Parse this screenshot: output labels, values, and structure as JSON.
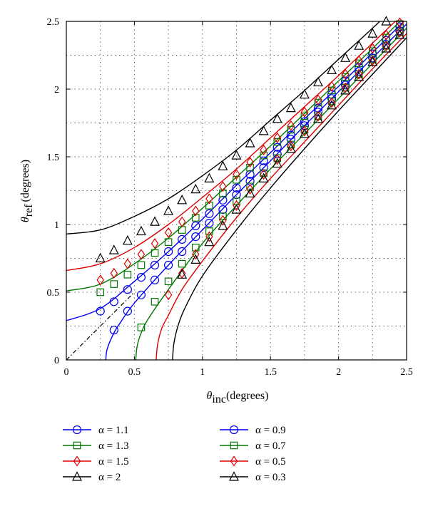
{
  "chart_data": {
    "type": "line",
    "xlabel": {
      "symbol": "θ",
      "subscript": "inc",
      "unit": "(degrees)"
    },
    "ylabel": {
      "symbol": "θ",
      "subscript": "ref",
      "unit": "(degrees)"
    },
    "xlim": [
      0,
      2.5
    ],
    "ylim": [
      0,
      2.5
    ],
    "xticks": [
      "0",
      "0.5",
      "1",
      "1.5",
      "2",
      "2.5"
    ],
    "yticks": [
      "0",
      "0.5",
      "1",
      "1.5",
      "2",
      "2.5"
    ],
    "grid": true,
    "reference_line": {
      "style": "dash-dot",
      "from": [
        0,
        0
      ],
      "to": [
        0.5,
        0.5
      ]
    },
    "legend_position": "bottom-two-columns",
    "series": [
      {
        "name": "α = 1.1",
        "color": "#0000ee",
        "marker": "circle",
        "column": 0,
        "x": [
          0.25,
          0.35,
          0.45,
          0.55,
          0.65,
          0.75,
          0.85,
          0.95,
          1.05,
          1.15,
          1.25,
          1.35,
          1.45,
          1.55,
          1.65,
          1.75,
          1.85,
          1.95,
          2.05,
          2.15,
          2.25,
          2.35,
          2.45
        ],
        "y": [
          0.36,
          0.43,
          0.52,
          0.61,
          0.7,
          0.8,
          0.89,
          0.99,
          1.08,
          1.18,
          1.27,
          1.37,
          1.47,
          1.57,
          1.66,
          1.76,
          1.86,
          1.96,
          2.06,
          2.16,
          2.26,
          2.36,
          2.46
        ]
      },
      {
        "name": "α = 1.3",
        "color": "#007700",
        "marker": "square",
        "column": 0,
        "x": [
          0.25,
          0.35,
          0.45,
          0.55,
          0.65,
          0.75,
          0.85,
          0.95,
          1.05,
          1.15,
          1.25,
          1.35,
          1.45,
          1.55,
          1.65,
          1.75,
          1.85,
          1.95,
          2.05,
          2.15,
          2.25,
          2.35,
          2.45
        ],
        "y": [
          0.5,
          0.56,
          0.63,
          0.7,
          0.79,
          0.87,
          0.96,
          1.05,
          1.14,
          1.23,
          1.33,
          1.42,
          1.51,
          1.61,
          1.7,
          1.8,
          1.9,
          1.99,
          2.09,
          2.19,
          2.28,
          2.38,
          2.48
        ]
      },
      {
        "name": "α = 1.5",
        "color": "#dd0000",
        "marker": "diamond",
        "column": 0,
        "x": [
          0.25,
          0.35,
          0.45,
          0.55,
          0.65,
          0.75,
          0.85,
          0.95,
          1.05,
          1.15,
          1.25,
          1.35,
          1.45,
          1.55,
          1.65,
          1.75,
          1.85,
          1.95,
          2.05,
          2.15,
          2.25,
          2.35,
          2.45
        ],
        "y": [
          0.59,
          0.64,
          0.71,
          0.78,
          0.86,
          0.94,
          1.02,
          1.1,
          1.19,
          1.28,
          1.37,
          1.46,
          1.55,
          1.64,
          1.73,
          1.83,
          1.92,
          2.02,
          2.11,
          2.21,
          2.3,
          2.4,
          2.49
        ]
      },
      {
        "name": "α = 2",
        "color": "#000000",
        "marker": "triangle",
        "column": 0,
        "x": [
          0.25,
          0.35,
          0.45,
          0.55,
          0.65,
          0.75,
          0.85,
          0.95,
          1.05,
          1.15,
          1.25,
          1.35,
          1.45,
          1.55,
          1.65,
          1.75,
          1.85,
          1.95,
          2.05,
          2.15,
          2.25,
          2.35
        ],
        "y": [
          0.75,
          0.81,
          0.88,
          0.95,
          1.02,
          1.1,
          1.18,
          1.26,
          1.34,
          1.43,
          1.51,
          1.6,
          1.69,
          1.78,
          1.86,
          1.96,
          2.05,
          2.14,
          2.23,
          2.32,
          2.41,
          2.5
        ]
      },
      {
        "name": "α = 0.9",
        "color": "#0000ee",
        "marker": "circle",
        "column": 1,
        "x": [
          0.35,
          0.45,
          0.55,
          0.65,
          0.75,
          0.85,
          0.95,
          1.05,
          1.15,
          1.25,
          1.35,
          1.45,
          1.55,
          1.65,
          1.75,
          1.85,
          1.95,
          2.05,
          2.15,
          2.25,
          2.35,
          2.45
        ],
        "y": [
          0.22,
          0.36,
          0.48,
          0.59,
          0.7,
          0.8,
          0.91,
          1.01,
          1.11,
          1.22,
          1.32,
          1.42,
          1.52,
          1.63,
          1.73,
          1.83,
          1.93,
          2.03,
          2.13,
          2.23,
          2.33,
          2.43
        ]
      },
      {
        "name": "α = 0.7",
        "color": "#007700",
        "marker": "square",
        "column": 1,
        "x": [
          0.55,
          0.65,
          0.75,
          0.85,
          0.95,
          1.05,
          1.15,
          1.25,
          1.35,
          1.45,
          1.55,
          1.65,
          1.75,
          1.85,
          1.95,
          2.05,
          2.15,
          2.25,
          2.35,
          2.45
        ],
        "y": [
          0.24,
          0.43,
          0.58,
          0.71,
          0.83,
          0.95,
          1.06,
          1.17,
          1.28,
          1.38,
          1.49,
          1.59,
          1.7,
          1.8,
          1.91,
          2.01,
          2.11,
          2.22,
          2.32,
          2.42
        ]
      },
      {
        "name": "α = 0.5",
        "color": "#dd0000",
        "marker": "diamond",
        "column": 1,
        "x": [
          0.75,
          0.85,
          0.95,
          1.05,
          1.15,
          1.25,
          1.35,
          1.45,
          1.55,
          1.65,
          1.75,
          1.85,
          1.95,
          2.05,
          2.15,
          2.25,
          2.35,
          2.45
        ],
        "y": [
          0.48,
          0.64,
          0.78,
          0.91,
          1.03,
          1.14,
          1.26,
          1.37,
          1.48,
          1.58,
          1.69,
          1.8,
          1.9,
          2.01,
          2.11,
          2.21,
          2.32,
          2.42
        ]
      },
      {
        "name": "α = 0.3",
        "color": "#000000",
        "marker": "triangle",
        "column": 1,
        "x": [
          0.85,
          0.95,
          1.05,
          1.15,
          1.25,
          1.35,
          1.45,
          1.55,
          1.65,
          1.75,
          1.85,
          1.95,
          2.05,
          2.15,
          2.25,
          2.35,
          2.45
        ],
        "y": [
          0.63,
          0.74,
          0.87,
          0.99,
          1.11,
          1.23,
          1.34,
          1.45,
          1.56,
          1.67,
          1.78,
          1.88,
          1.99,
          2.09,
          2.2,
          2.3,
          2.4
        ]
      }
    ],
    "curves": [
      {
        "color": "#000000",
        "x": [
          0,
          0.25,
          0.5,
          0.75,
          1,
          1.25,
          1.5,
          1.75,
          2,
          2.25,
          2.5
        ],
        "y": [
          0.93,
          0.96,
          1.06,
          1.19,
          1.36,
          1.55,
          1.77,
          1.99,
          2.22,
          2.45,
          2.69
        ]
      },
      {
        "color": "#dd0000",
        "x": [
          0,
          0.25,
          0.5,
          0.75,
          1,
          1.25,
          1.5,
          1.75,
          2,
          2.25,
          2.5
        ],
        "y": [
          0.66,
          0.71,
          0.83,
          1.0,
          1.2,
          1.41,
          1.64,
          1.87,
          2.1,
          2.34,
          2.58
        ]
      },
      {
        "color": "#007700",
        "x": [
          0,
          0.25,
          0.5,
          0.75,
          1,
          1.25,
          1.5,
          1.75,
          2,
          2.25,
          2.5
        ],
        "y": [
          0.51,
          0.56,
          0.71,
          0.9,
          1.12,
          1.35,
          1.58,
          1.82,
          2.06,
          2.3,
          2.55
        ]
      },
      {
        "color": "#0000ee",
        "x": [
          0,
          0.25,
          0.5,
          0.75,
          1,
          1.25,
          1.5,
          1.75,
          2,
          2.25,
          2.5
        ],
        "y": [
          0.29,
          0.38,
          0.58,
          0.8,
          1.04,
          1.29,
          1.53,
          1.78,
          2.02,
          2.27,
          2.52
        ]
      },
      {
        "color": "#0000ee",
        "x": [
          0.29,
          0.3,
          0.35,
          0.4,
          0.5,
          0.75,
          1,
          1.25,
          1.5,
          1.75,
          2,
          2.25,
          2.5
        ],
        "y": [
          0,
          0.08,
          0.2,
          0.28,
          0.42,
          0.7,
          0.96,
          1.22,
          1.47,
          1.73,
          1.98,
          2.23,
          2.48
        ]
      },
      {
        "color": "#007700",
        "x": [
          0.51,
          0.52,
          0.55,
          0.6,
          0.75,
          1,
          1.25,
          1.5,
          1.75,
          2,
          2.25,
          2.5
        ],
        "y": [
          0,
          0.1,
          0.2,
          0.3,
          0.52,
          0.86,
          1.14,
          1.41,
          1.67,
          1.93,
          2.19,
          2.45
        ]
      },
      {
        "color": "#dd0000",
        "x": [
          0.66,
          0.67,
          0.7,
          0.75,
          0.85,
          1,
          1.25,
          1.5,
          1.75,
          2,
          2.25,
          2.5
        ],
        "y": [
          0,
          0.11,
          0.23,
          0.33,
          0.52,
          0.73,
          1.05,
          1.34,
          1.61,
          1.88,
          2.15,
          2.41
        ]
      },
      {
        "color": "#000000",
        "x": [
          0.78,
          0.79,
          0.82,
          0.87,
          1,
          1.25,
          1.5,
          1.75,
          2,
          2.25,
          2.5
        ],
        "y": [
          0,
          0.12,
          0.25,
          0.38,
          0.62,
          0.96,
          1.27,
          1.56,
          1.84,
          2.11,
          2.38
        ]
      }
    ]
  }
}
